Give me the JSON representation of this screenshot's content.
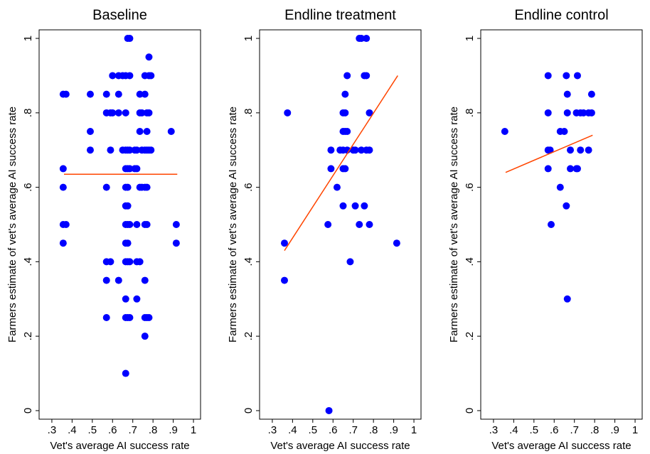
{
  "chart_data": [
    {
      "type": "scatter",
      "title": "Baseline",
      "x_label": "Vet's average AI success rate",
      "y_label": "Farmers estimate of vet's average AI success rate",
      "color": "#0000ff",
      "x": [
        0.356,
        0.356,
        0.356,
        0.356,
        0.356,
        0.37,
        0.37,
        0.49,
        0.49,
        0.49,
        0.57,
        0.57,
        0.57,
        0.57,
        0.57,
        0.57,
        0.59,
        0.59,
        0.59,
        0.6,
        0.6,
        0.63,
        0.63,
        0.63,
        0.63,
        0.65,
        0.65,
        0.665,
        0.665,
        0.665,
        0.665,
        0.665,
        0.665,
        0.665,
        0.665,
        0.665,
        0.665,
        0.665,
        0.665,
        0.675,
        0.675,
        0.675,
        0.675,
        0.675,
        0.675,
        0.675,
        0.675,
        0.675,
        0.685,
        0.685,
        0.685,
        0.685,
        0.685,
        0.685,
        0.685,
        0.71,
        0.71,
        0.72,
        0.72,
        0.72,
        0.72,
        0.72,
        0.735,
        0.735,
        0.735,
        0.735,
        0.735,
        0.745,
        0.745,
        0.745,
        0.76,
        0.76,
        0.76,
        0.76,
        0.76,
        0.76,
        0.76,
        0.76,
        0.77,
        0.77,
        0.77,
        0.77,
        0.77,
        0.77,
        0.78,
        0.78,
        0.78,
        0.78,
        0.78,
        0.79,
        0.79,
        0.89,
        0.915,
        0.915
      ],
      "values": [
        0.85,
        0.65,
        0.6,
        0.5,
        0.45,
        0.85,
        0.5,
        0.85,
        0.75,
        0.7,
        0.85,
        0.8,
        0.6,
        0.4,
        0.35,
        0.25,
        0.8,
        0.7,
        0.4,
        0.9,
        0.8,
        0.9,
        0.85,
        0.8,
        0.35,
        0.9,
        0.7,
        0.9,
        0.8,
        0.7,
        0.65,
        0.6,
        0.55,
        0.5,
        0.45,
        0.4,
        0.3,
        0.25,
        0.1,
        1,
        0.7,
        0.65,
        0.6,
        0.55,
        0.5,
        0.45,
        0.4,
        0.25,
        1,
        0.9,
        0.7,
        0.65,
        0.5,
        0.4,
        0.25,
        0.7,
        0.65,
        0.7,
        0.65,
        0.5,
        0.4,
        0.3,
        0.85,
        0.8,
        0.75,
        0.6,
        0.4,
        0.8,
        0.7,
        0.6,
        0.9,
        0.85,
        0.7,
        0.6,
        0.5,
        0.35,
        0.25,
        0.2,
        0.8,
        0.75,
        0.7,
        0.6,
        0.5,
        0.25,
        0.95,
        0.9,
        0.8,
        0.7,
        0.25,
        0.9,
        0.7,
        0.75,
        0.5,
        0.45
      ],
      "fit": {
        "x": [
          0.36,
          0.92
        ],
        "values": [
          0.635,
          0.635
        ],
        "color": "#ff4500"
      },
      "xlim": [
        0.237,
        1.035
      ],
      "ylim": [
        -0.023,
        1.023
      ],
      "xticks": [
        {
          "value": 0.3,
          "label": ".3"
        },
        {
          "value": 0.4,
          "label": ".4"
        },
        {
          "value": 0.5,
          "label": ".5"
        },
        {
          "value": 0.6,
          "label": ".6"
        },
        {
          "value": 0.7,
          "label": ".7"
        },
        {
          "value": 0.8,
          "label": ".8"
        },
        {
          "value": 0.9,
          "label": ".9"
        },
        1
      ],
      "yticks": [
        0,
        {
          "value": 0.2,
          "label": ".2"
        },
        {
          "value": 0.4,
          "label": ".4"
        },
        {
          "value": 0.6,
          "label": ".6"
        },
        {
          "value": 0.8,
          "label": ".8"
        },
        1
      ]
    },
    {
      "type": "scatter",
      "title": "Endline treatment",
      "x_label": "Vet's average AI success rate",
      "y_label": "Farmers estimate of vet's average AI success rate",
      "color": "#0000ff",
      "x": [
        0.36,
        0.36,
        0.375,
        0.575,
        0.58,
        0.59,
        0.59,
        0.62,
        0.635,
        0.65,
        0.65,
        0.65,
        0.65,
        0.65,
        0.66,
        0.66,
        0.66,
        0.66,
        0.67,
        0.67,
        0.67,
        0.685,
        0.7,
        0.71,
        0.71,
        0.73,
        0.73,
        0.74,
        0.74,
        0.755,
        0.755,
        0.765,
        0.765,
        0.765,
        0.78,
        0.78,
        0.78,
        0.915
      ],
      "values": [
        0.45,
        0.35,
        0.8,
        0.5,
        0,
        0.7,
        0.65,
        0.6,
        0.7,
        0.8,
        0.75,
        0.7,
        0.65,
        0.55,
        0.85,
        0.8,
        0.75,
        0.65,
        0.9,
        0.75,
        0.7,
        0.4,
        0.7,
        0.7,
        0.55,
        1,
        0.5,
        0.7,
        1,
        0.9,
        0.55,
        1,
        0.9,
        0.7,
        0.8,
        0.7,
        0.5,
        0.45
      ],
      "fit": {
        "x": [
          0.36,
          0.92
        ],
        "values": [
          0.43,
          0.9
        ],
        "color": "#ff4500"
      },
      "xlim": [
        0.237,
        1.035
      ],
      "ylim": [
        -0.023,
        1.023
      ],
      "xticks": [
        {
          "value": 0.3,
          "label": ".3"
        },
        {
          "value": 0.4,
          "label": ".4"
        },
        {
          "value": 0.5,
          "label": ".5"
        },
        {
          "value": 0.6,
          "label": ".6"
        },
        {
          "value": 0.7,
          "label": ".7"
        },
        {
          "value": 0.8,
          "label": ".8"
        },
        {
          "value": 0.9,
          "label": ".9"
        },
        1
      ],
      "yticks": [
        0,
        {
          "value": 0.2,
          "label": ".2"
        },
        {
          "value": 0.4,
          "label": ".4"
        },
        {
          "value": 0.6,
          "label": ".6"
        },
        {
          "value": 0.8,
          "label": ".8"
        },
        1
      ]
    },
    {
      "type": "scatter",
      "title": "Endline control",
      "x_label": "Vet's average AI success rate",
      "y_label": "Farmers estimate of vet's average AI success rate",
      "color": "#0000ff",
      "x": [
        0.356,
        0.57,
        0.57,
        0.57,
        0.57,
        0.58,
        0.585,
        0.63,
        0.63,
        0.65,
        0.66,
        0.66,
        0.665,
        0.665,
        0.665,
        0.68,
        0.68,
        0.71,
        0.71,
        0.715,
        0.715,
        0.73,
        0.73,
        0.745,
        0.77,
        0.77,
        0.785,
        0.785
      ],
      "values": [
        0.75,
        0.9,
        0.8,
        0.7,
        0.65,
        0.7,
        0.5,
        0.75,
        0.6,
        0.75,
        0.9,
        0.55,
        0.85,
        0.8,
        0.3,
        0.7,
        0.65,
        0.8,
        0.65,
        0.9,
        0.65,
        0.8,
        0.7,
        0.8,
        0.8,
        0.7,
        0.85,
        0.8
      ],
      "fit": {
        "x": [
          0.36,
          0.79
        ],
        "values": [
          0.64,
          0.74
        ],
        "color": "#ff4500"
      },
      "xlim": [
        0.237,
        1.035
      ],
      "ylim": [
        -0.023,
        1.023
      ],
      "xticks": [
        {
          "value": 0.3,
          "label": ".3"
        },
        {
          "value": 0.4,
          "label": ".4"
        },
        {
          "value": 0.5,
          "label": ".5"
        },
        {
          "value": 0.6,
          "label": ".6"
        },
        {
          "value": 0.7,
          "label": ".7"
        },
        {
          "value": 0.8,
          "label": ".8"
        },
        {
          "value": 0.9,
          "label": ".9"
        },
        1
      ],
      "yticks": [
        0,
        {
          "value": 0.2,
          "label": ".2"
        },
        {
          "value": 0.4,
          "label": ".4"
        },
        {
          "value": 0.6,
          "label": ".6"
        },
        {
          "value": 0.8,
          "label": ".8"
        },
        1
      ]
    }
  ]
}
